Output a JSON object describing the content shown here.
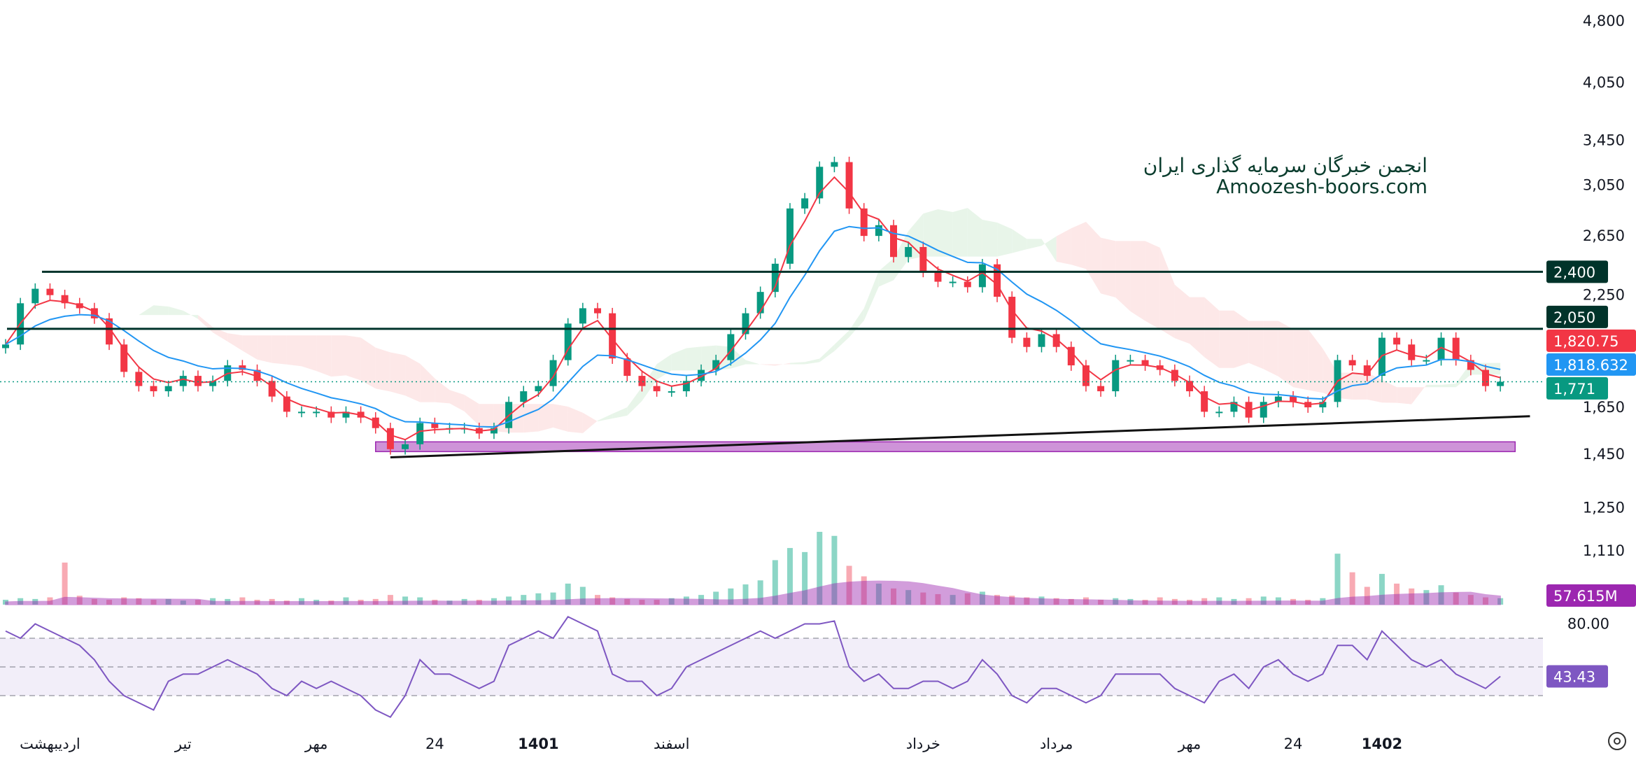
{
  "watermark": {
    "line1": "انجمن خبرگان سرمایه گذاری ایران",
    "line2": "Amoozesh-boors.com"
  },
  "chart_data": {
    "type": "candlestick",
    "price_scale": "log",
    "ylim": [
      1100,
      4800
    ],
    "y_ticks": [
      4800,
      4050,
      3450,
      3050,
      2650,
      2250,
      1650,
      1450,
      1250,
      1110
    ],
    "y_tick_labels": [
      "4,800",
      "4,050",
      "3,450",
      "3,050",
      "2,650",
      "2,250",
      "1,650",
      "1,450",
      "1,250",
      "1,110"
    ],
    "close": [
      1963,
      2200,
      2290,
      2250,
      2200,
      2170,
      2110,
      1963,
      1820,
      1750,
      1725,
      1750,
      1800,
      1750,
      1775,
      1853,
      1830,
      1775,
      1700,
      1630,
      1630,
      1630,
      1604,
      1630,
      1604,
      1558,
      1470,
      1490,
      1580,
      1558,
      1558,
      1558,
      1535,
      1558,
      1675,
      1725,
      1750,
      1880,
      2080,
      2170,
      2140,
      1889,
      1800,
      1750,
      1725,
      1725,
      1775,
      1830,
      1880,
      2020,
      2140,
      2270,
      2454,
      2859,
      2940,
      3208,
      3250,
      2859,
      2650,
      2730,
      2500,
      2570,
      2400,
      2335,
      2335,
      2300,
      2450,
      2240,
      2000,
      1950,
      2020,
      1950,
      1853,
      1750,
      1725,
      1880,
      1880,
      1853,
      1830,
      1775,
      1725,
      1630,
      1630,
      1675,
      1604,
      1675,
      1700,
      1675,
      1650,
      1675,
      1880,
      1853,
      1800,
      2000,
      1963,
      1880,
      1880,
      2000,
      1880,
      1830,
      1750,
      1771
    ],
    "volume_millions": [
      60,
      80,
      70,
      90,
      520,
      110,
      70,
      60,
      90,
      80,
      60,
      70,
      50,
      60,
      80,
      70,
      90,
      60,
      70,
      50,
      80,
      60,
      50,
      90,
      60,
      70,
      120,
      100,
      90,
      60,
      50,
      70,
      60,
      80,
      100,
      120,
      140,
      150,
      260,
      220,
      120,
      90,
      70,
      60,
      60,
      80,
      100,
      120,
      160,
      200,
      250,
      300,
      550,
      700,
      650,
      900,
      850,
      480,
      350,
      260,
      200,
      180,
      150,
      130,
      120,
      140,
      160,
      120,
      110,
      90,
      100,
      80,
      70,
      90,
      60,
      80,
      70,
      60,
      90,
      70,
      60,
      80,
      90,
      70,
      80,
      100,
      90,
      70,
      60,
      80,
      630,
      400,
      220,
      380,
      260,
      200,
      180,
      240,
      150,
      120,
      90,
      80
    ],
    "volume_ma_label": "57.615M",
    "rsi": [
      75,
      70,
      80,
      75,
      70,
      65,
      55,
      40,
      30,
      25,
      20,
      40,
      45,
      45,
      50,
      55,
      50,
      45,
      35,
      30,
      40,
      35,
      40,
      35,
      30,
      20,
      15,
      30,
      55,
      45,
      45,
      40,
      35,
      40,
      65,
      70,
      75,
      70,
      85,
      80,
      75,
      45,
      40,
      40,
      30,
      35,
      50,
      55,
      60,
      65,
      70,
      75,
      70,
      75,
      80,
      80,
      82,
      50,
      40,
      45,
      35,
      35,
      40,
      40,
      35,
      40,
      55,
      45,
      30,
      25,
      35,
      35,
      30,
      25,
      30,
      45,
      45,
      45,
      45,
      35,
      30,
      25,
      40,
      45,
      35,
      50,
      55,
      45,
      40,
      45,
      65,
      65,
      55,
      75,
      65,
      55,
      50,
      55,
      45,
      40,
      35,
      43.43
    ],
    "rsi_levels": [
      70,
      50,
      30
    ],
    "rsi_tick_label": "80.00",
    "rsi_value_label": "43.43",
    "horizontal_levels": [
      {
        "value": 2400,
        "label": "2,400"
      },
      {
        "value": 2050,
        "label": "2,050"
      }
    ],
    "trendline": {
      "from": {
        "index": 26,
        "price": 1437
      },
      "to": {
        "index": 103,
        "price": 1610
      }
    },
    "support_zone": {
      "from_index": 25,
      "to_index": 102,
      "top": 1500,
      "bottom": 1460
    },
    "price_labels": [
      {
        "label": "1,820.75",
        "value": 1820.75,
        "color": "#f23645"
      },
      {
        "label": "1,818.632",
        "value": 1818.632,
        "color": "#2196f3"
      },
      {
        "label": "1,771",
        "value": 1771,
        "color": "#089981"
      }
    ],
    "x_labels": [
      {
        "label": "اردیبهشت",
        "index": 3
      },
      {
        "label": "تیر",
        "index": 12
      },
      {
        "label": "مهر",
        "index": 21
      },
      {
        "label": "24",
        "index": 29
      },
      {
        "label": "1401",
        "index": 36
      },
      {
        "label": "اسفند",
        "index": 45
      },
      {
        "label": "خرداد",
        "index": 62
      },
      {
        "label": "مرداد",
        "index": 71
      },
      {
        "label": "مهر",
        "index": 80
      },
      {
        "label": "24",
        "index": 87
      },
      {
        "label": "1402",
        "index": 93
      }
    ],
    "colors": {
      "up": "#089981",
      "down": "#f23645",
      "ma_fast": "#f23645",
      "ma_slow": "#2196f3",
      "volume_ma": "#9c27b0",
      "level": "#00332a",
      "rsi": "#7e57c2",
      "zone": "#ce93d8"
    }
  }
}
